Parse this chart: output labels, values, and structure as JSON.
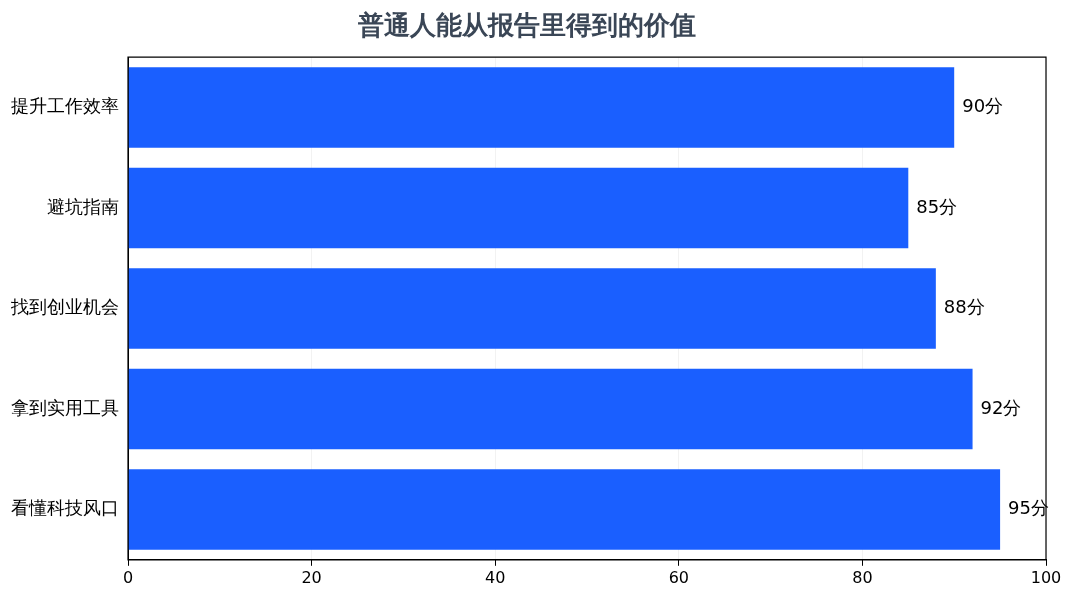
{
  "chart_data": {
    "type": "bar",
    "orientation": "horizontal",
    "title": "普通人能从报告里得到的价值",
    "categories": [
      "提升工作效率",
      "避坑指南",
      "找到创业机会",
      "拿到实用工具",
      "看懂科技风口"
    ],
    "values": [
      90,
      85,
      88,
      92,
      95
    ],
    "value_labels": [
      "90分",
      "85分",
      "88分",
      "92分",
      "95分"
    ],
    "color": "#1a5fff",
    "xlim": [
      0,
      100
    ],
    "xticks": [
      0,
      20,
      40,
      60,
      80,
      100
    ],
    "grid": "x",
    "legend": false
  }
}
